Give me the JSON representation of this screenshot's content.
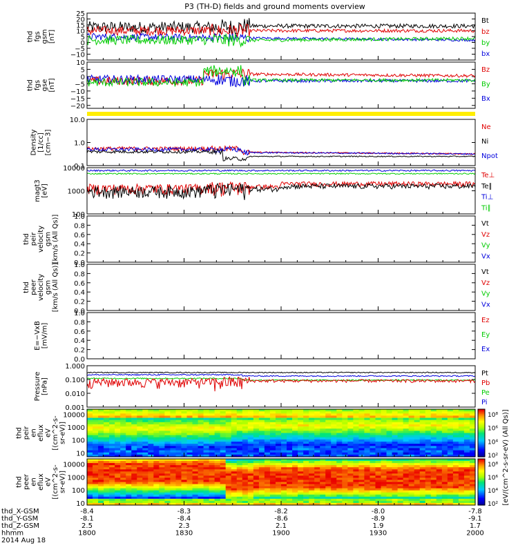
{
  "title": "P3 (TH-D) fields and ground moments overview",
  "colors": {
    "black": "#000000",
    "red": "#e00000",
    "green": "#00cc00",
    "blue": "#0000dd",
    "yellow": "#ffee00"
  },
  "chart_data": [
    {
      "id": "fgs",
      "type": "line",
      "ylabel": [
        "thd",
        "fgs",
        "gsm",
        "[nT]"
      ],
      "ylim": [
        -15,
        25
      ],
      "ticks": [
        "25",
        "20",
        "15",
        "10",
        "5",
        "0",
        "−5",
        "−10"
      ],
      "tickvals": [
        25,
        20,
        15,
        10,
        5,
        0,
        -5,
        -10
      ],
      "legend": [
        "Bt",
        "bz",
        "by",
        "bx"
      ]
    },
    {
      "id": "fgsgse",
      "type": "line",
      "ylabel": [
        "thd",
        "fgs",
        "gse",
        "[nT]"
      ],
      "ylim": [
        -22,
        10
      ],
      "ticks": [
        "10",
        "5",
        "0",
        "−5",
        "−10",
        "−15",
        "−20"
      ],
      "tickvals": [
        10,
        5,
        0,
        -5,
        -10,
        -15,
        -20
      ],
      "legend": [
        "Bz",
        "By",
        "Bx"
      ]
    },
    {
      "id": "density",
      "type": "line",
      "log": true,
      "ylabel": [
        "Density",
        "[1/cc]",
        "[cm−3]"
      ],
      "ylim": [
        0.1,
        10
      ],
      "ticks": [
        "10.0",
        "1.0",
        "0.1"
      ],
      "tickvals": [
        10,
        1,
        0.1
      ],
      "legend": [
        "Ne",
        "Ni",
        "Npot"
      ]
    },
    {
      "id": "temp",
      "type": "line",
      "log": true,
      "ylabel": [
        "magt3",
        "[eV]"
      ],
      "ylim": [
        100,
        10000
      ],
      "ticks": [
        "10000",
        "1000",
        "100"
      ],
      "tickvals": [
        10000,
        1000,
        100
      ],
      "legend": [
        "Te⊥",
        "Te∥",
        "Ti⊥",
        "Ti∥"
      ]
    },
    {
      "id": "peirv",
      "type": "line",
      "ylabel": [
        "thd",
        "peir",
        "velocity",
        "gsm",
        "[km/s (All Qs)]"
      ],
      "ylim": [
        0,
        1
      ],
      "ticks": [
        "1.0",
        "0.8",
        "0.6",
        "0.4",
        "0.2",
        "0.0"
      ],
      "tickvals": [
        1,
        0.8,
        0.6,
        0.4,
        0.2,
        0
      ],
      "legend": [
        "Vt",
        "Vz",
        "Vy",
        "Vx"
      ]
    },
    {
      "id": "peerv",
      "type": "line",
      "ylabel": [
        "thd",
        "peer",
        "velocity",
        "gsm",
        "[km/s (All Qs)]"
      ],
      "ylim": [
        0,
        1
      ],
      "ticks": [
        "1.0",
        "0.8",
        "0.6",
        "0.4",
        "0.2",
        "0.0"
      ],
      "tickvals": [
        1,
        0.8,
        0.6,
        0.4,
        0.2,
        0
      ],
      "legend": [
        "Vt",
        "Vz",
        "Vy",
        "Vx"
      ]
    },
    {
      "id": "efield",
      "type": "line",
      "ylabel": [
        "E=−VxB",
        "[mV/m]"
      ],
      "ylim": [
        0,
        1
      ],
      "ticks": [
        "1.0",
        "0.8",
        "0.6",
        "0.4",
        "0.2",
        "0.0"
      ],
      "tickvals": [
        1,
        0.8,
        0.6,
        0.4,
        0.2,
        0
      ],
      "legend": [
        "Ez",
        "Ey",
        "Ex"
      ]
    },
    {
      "id": "pressure",
      "type": "line",
      "log": true,
      "ylabel": [
        "Pressure",
        "[nPa]"
      ],
      "ylim": [
        0.001,
        1
      ],
      "ticks": [
        "1.000",
        "0.100",
        "0.010",
        "0.001"
      ],
      "tickvals": [
        1,
        0.1,
        0.01,
        0.001
      ],
      "legend": [
        "Pt",
        "Pb",
        "Pe",
        "Pi"
      ]
    },
    {
      "id": "peirspec",
      "type": "heatmap",
      "log": true,
      "ylabel": [
        "thd",
        "peir",
        "en",
        "eflux",
        "eV",
        "[(cm^2-s-",
        "sr-eV)]"
      ],
      "ylim": [
        5,
        25000
      ],
      "ticks": [
        "10000",
        "1000",
        "100",
        "10"
      ],
      "tickvals": [
        10000,
        1000,
        100,
        10
      ]
    },
    {
      "id": "peerspec",
      "type": "heatmap",
      "log": true,
      "ylabel": [
        "thd",
        "peer",
        "en",
        "eflux",
        "eV",
        "[(cm^2-s-",
        "sr-eV)]"
      ],
      "ylim": [
        7,
        25000
      ],
      "ticks": [
        "10000",
        "1000",
        "100",
        "10"
      ],
      "tickvals": [
        10000,
        1000,
        100,
        10
      ]
    }
  ],
  "colorbar": {
    "label": "[eV/(cm^2-s-sr-eV) (All Qs)]",
    "ticks_top": [
      "10⁸",
      "10⁶",
      "10⁴",
      "10²"
    ],
    "ticks_bottom": [
      "10⁸",
      "10⁶",
      "10⁴",
      "10²"
    ]
  },
  "xaxis": {
    "rows": [
      {
        "label": "thd_X-GSM",
        "values": [
          "-8.4",
          "-8.3",
          "-8.2",
          "-8.0",
          "-7.8"
        ]
      },
      {
        "label": "thd_Y-GSM",
        "values": [
          "-8.1",
          "-8.4",
          "-8.6",
          "-8.9",
          "-9.1"
        ]
      },
      {
        "label": "thd_Z-GSM",
        "values": [
          "2.5",
          "2.3",
          "2.1",
          "1.9",
          "1.7"
        ]
      },
      {
        "label": "hhmm",
        "values": [
          "1800",
          "1830",
          "1900",
          "1930",
          "2000"
        ]
      }
    ],
    "date": "2014 Aug 18"
  }
}
